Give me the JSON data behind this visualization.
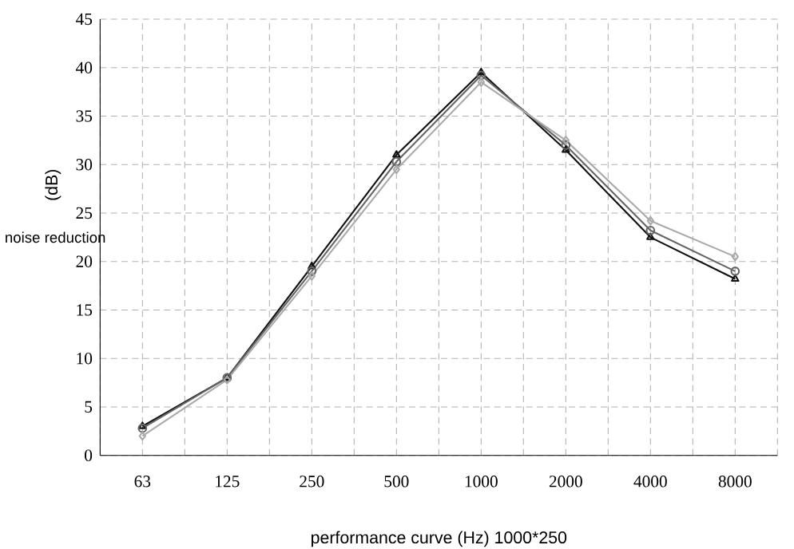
{
  "chart_data": {
    "type": "line",
    "xlabel": "performance curve (Hz)  1000*250",
    "ylabel": "(dB)",
    "annotations": [
      "noise reduction"
    ],
    "categories": [
      "63",
      "125",
      "250",
      "500",
      "1000",
      "2000",
      "4000",
      "8000"
    ],
    "ylim": [
      0,
      45
    ],
    "yticks": [
      0,
      5,
      10,
      15,
      20,
      25,
      30,
      35,
      40,
      45
    ],
    "grid": true,
    "line_style": "solid",
    "series": [
      {
        "color": "#111111",
        "marker": "triangle",
        "values": [
          3,
          8,
          19.5,
          31,
          39.5,
          31.5,
          22.5,
          18.2
        ]
      },
      {
        "color": "#666666",
        "marker": "circle",
        "values": [
          2.8,
          8,
          19,
          30.3,
          39.2,
          32,
          23.2,
          19
        ]
      },
      {
        "color": "#aaaaaa",
        "marker": "diamond",
        "values": [
          2,
          7.8,
          18.5,
          29.5,
          38.5,
          32.5,
          24.2,
          20.5
        ]
      }
    ]
  }
}
